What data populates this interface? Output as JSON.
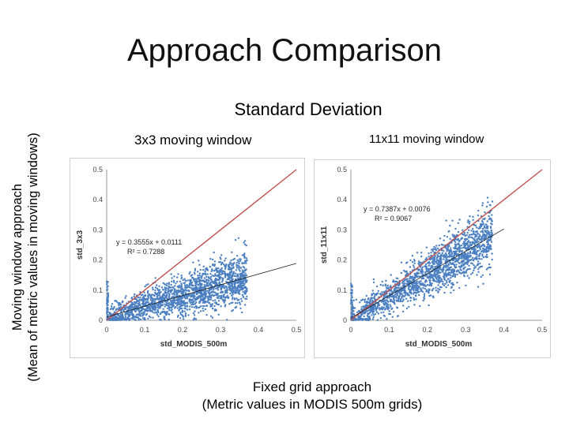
{
  "slide": {
    "title": "Approach Comparison",
    "subtitle": "Standard Deviation",
    "side_label_line1": "Moving window approach",
    "side_label_line2": "(Mean of metric values in moving windows)",
    "bottom_line1": "Fixed grid approach",
    "bottom_line2": "(Metric values in MODIS 500m grids)"
  },
  "panels": [
    {
      "label": "3x3 moving window"
    },
    {
      "label": "11x11 moving window"
    }
  ],
  "colors": {
    "points": "#4a7fc1",
    "identity_line": "#c0504d",
    "trend_line": "#1a1a1a",
    "axis": "#999999"
  },
  "chart_data": [
    {
      "type": "scatter",
      "xlabel": "std_MODIS_500m",
      "ylabel": "std_3x3",
      "xlim": [
        0,
        0.5
      ],
      "ylim": [
        0,
        0.5
      ],
      "xticks": [
        "0",
        "0.1",
        "0.2",
        "0.3",
        "0.4",
        "0.5"
      ],
      "yticks": [
        "0",
        "0.1",
        "0.2",
        "0.3",
        "0.4",
        "0.5"
      ],
      "grid": false,
      "equation": "y = 0.3555x + 0.0111",
      "r_squared": "R² = 0.7288",
      "trend": {
        "slope": 0.3555,
        "intercept": 0.0111,
        "x_range": [
          0,
          0.5
        ]
      },
      "identity_line": {
        "x_range": [
          0,
          0.5
        ]
      },
      "point_cloud": {
        "count": 1800,
        "x_range": [
          0,
          0.37
        ],
        "noise": 0.035,
        "seed": 7
      }
    },
    {
      "type": "scatter",
      "xlabel": "std_MODIS_500m",
      "ylabel": "std_11x11",
      "xlim": [
        0,
        0.5
      ],
      "ylim": [
        0,
        0.5
      ],
      "xticks": [
        "0",
        "0.1",
        "0.2",
        "0.3",
        "0.4",
        "0.5"
      ],
      "yticks": [
        "0",
        "0.1",
        "0.2",
        "0.3",
        "0.4",
        "0.5"
      ],
      "grid": false,
      "equation": "y = 0.7387x + 0.0076",
      "r_squared": "R² = 0.9067",
      "trend": {
        "slope": 0.7387,
        "intercept": 0.0076,
        "x_range": [
          0,
          0.4
        ]
      },
      "identity_line": {
        "x_range": [
          0,
          0.5
        ]
      },
      "point_cloud": {
        "count": 1800,
        "x_range": [
          0,
          0.37
        ],
        "noise": 0.04,
        "seed": 13
      }
    }
  ]
}
